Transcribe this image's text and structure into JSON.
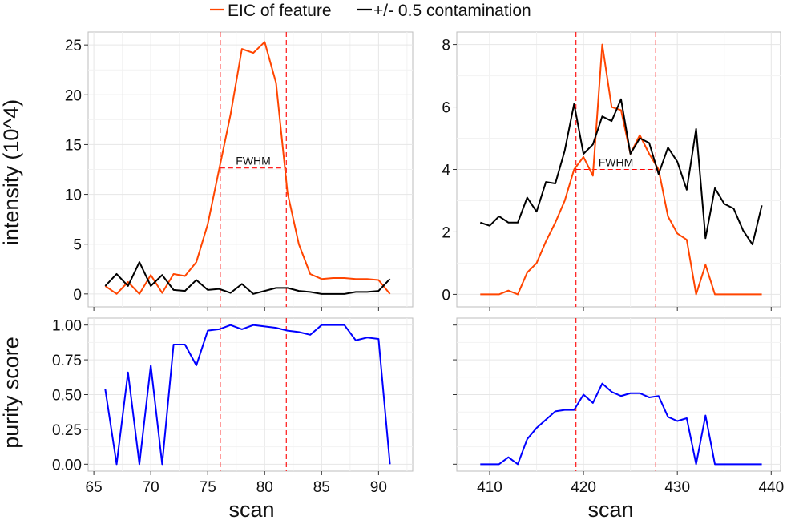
{
  "legend": {
    "entries": [
      {
        "label": "EIC of feature",
        "color": "#ff4500"
      },
      {
        "label": "+/- 0.5 contamination",
        "color": "#000000"
      }
    ]
  },
  "labels": {
    "ylabel_top": "intensity (10^4)",
    "ylabel_bottom": "purity score",
    "xlabel_left": "scan",
    "xlabel_right": "scan",
    "fwhm": "FWHM"
  },
  "colors": {
    "eic": "#ff4500",
    "contamination": "#000000",
    "purity": "#0000ff",
    "boundary": "#ff0000"
  },
  "chart_data": [
    {
      "panel": "top-left",
      "type": "line",
      "xlim": [
        64.5,
        93
      ],
      "ylim": [
        -1.3,
        26.3
      ],
      "xticks": [
        65,
        70,
        75,
        80,
        85,
        90
      ],
      "yticks": [
        0,
        5,
        10,
        15,
        20,
        25
      ],
      "ytick_labels": [
        "0",
        "5",
        "10",
        "15",
        "20",
        "25"
      ],
      "x": [
        66,
        67,
        68,
        69,
        70,
        71,
        72,
        73,
        74,
        75,
        76,
        77,
        78,
        79,
        80,
        81,
        82,
        83,
        84,
        85,
        86,
        87,
        88,
        89,
        90,
        91
      ],
      "series": [
        {
          "name": "EIC of feature",
          "color": "#ff4500",
          "values": [
            0.8,
            0,
            1.2,
            0,
            1.9,
            0.1,
            2,
            1.8,
            3.2,
            7,
            12.5,
            18,
            24.6,
            24.2,
            25.3,
            21.2,
            10.2,
            5,
            2,
            1.5,
            1.6,
            1.6,
            1.5,
            1.5,
            1.4,
            0
          ]
        },
        {
          "name": "+/- 0.5 contamination",
          "color": "#000000",
          "values": [
            0.8,
            2,
            0.8,
            3.2,
            0.8,
            1.9,
            0.4,
            0.3,
            1.4,
            0.4,
            0.5,
            0.1,
            1,
            0,
            0.3,
            0.6,
            0.6,
            0.3,
            0.2,
            0,
            0,
            0,
            0.2,
            0.2,
            0.3,
            1.5
          ]
        }
      ],
      "vlines": [
        76.1,
        81.9
      ],
      "fwhm": {
        "x0": 76.1,
        "x1": 81.9,
        "y": 12.65,
        "label": "FWHM"
      }
    },
    {
      "panel": "top-right",
      "type": "line",
      "xlim": [
        406.5,
        441
      ],
      "ylim": [
        -0.4,
        8.4
      ],
      "yticks": [
        0,
        2,
        4,
        6,
        8
      ],
      "ytick_labels": [
        "0",
        "2",
        "4",
        "6",
        "8"
      ],
      "x": [
        409,
        410,
        411,
        412,
        413,
        414,
        415,
        416,
        417,
        418,
        419,
        420,
        421,
        422,
        423,
        424,
        425,
        426,
        427,
        428,
        429,
        430,
        431,
        432,
        433,
        434,
        435,
        436,
        437,
        438,
        439
      ],
      "series": [
        {
          "name": "EIC of feature",
          "color": "#ff4500",
          "values": [
            0,
            0,
            0,
            0.12,
            0,
            0.7,
            1,
            1.7,
            2.3,
            3,
            4,
            4.4,
            3.8,
            8,
            6,
            5.9,
            4.5,
            5.1,
            4.5,
            4,
            2.5,
            1.95,
            1.75,
            0,
            0.95,
            0,
            0,
            0,
            0,
            0,
            0
          ]
        },
        {
          "name": "+/- 0.5 contamination",
          "color": "#000000",
          "values": [
            2.3,
            2.2,
            2.5,
            2.3,
            2.3,
            3.1,
            2.65,
            3.6,
            3.55,
            4.6,
            6.1,
            4.5,
            4.8,
            5.7,
            5.55,
            6.25,
            4.5,
            5,
            4.85,
            3.85,
            4.7,
            4.25,
            3.35,
            5.3,
            1.8,
            3.4,
            2.9,
            2.75,
            2.05,
            1.6,
            2.85
          ]
        }
      ],
      "vlines": [
        419.2,
        427.7
      ],
      "fwhm": {
        "x0": 419.2,
        "x1": 427.7,
        "y": 4,
        "label": "FWHM"
      }
    },
    {
      "panel": "bottom-left",
      "type": "line",
      "xlim": [
        64.5,
        93
      ],
      "ylim": [
        -0.05,
        1.05
      ],
      "xticks": [
        65,
        70,
        75,
        80,
        85,
        90
      ],
      "xtick_labels": [
        "65",
        "70",
        "75",
        "80",
        "85",
        "90"
      ],
      "yticks": [
        0,
        0.25,
        0.5,
        0.75,
        1
      ],
      "ytick_labels": [
        "0.00",
        "0.25",
        "0.50",
        "0.75",
        "1.00"
      ],
      "x": [
        66,
        67,
        68,
        69,
        70,
        71,
        72,
        73,
        74,
        75,
        76,
        77,
        78,
        79,
        80,
        81,
        82,
        83,
        84,
        85,
        86,
        87,
        88,
        89,
        90,
        91
      ],
      "series": [
        {
          "name": "purity score",
          "color": "#0000ff",
          "values": [
            0.54,
            0,
            0.66,
            0,
            0.71,
            0,
            0.86,
            0.86,
            0.71,
            0.96,
            0.97,
            1,
            0.97,
            1,
            0.99,
            0.98,
            0.96,
            0.95,
            0.93,
            1,
            1,
            1,
            0.89,
            0.91,
            0.9,
            0
          ]
        }
      ],
      "vlines": [
        76.1,
        81.9
      ]
    },
    {
      "panel": "bottom-right",
      "type": "line",
      "xlim": [
        406.5,
        441
      ],
      "ylim": [
        -0.05,
        1.05
      ],
      "xticks": [
        410,
        420,
        430,
        440
      ],
      "xtick_labels": [
        "410",
        "420",
        "430",
        "440"
      ],
      "yticks": [
        0,
        0.25,
        0.5,
        0.75,
        1
      ],
      "x": [
        409,
        410,
        411,
        412,
        413,
        414,
        415,
        416,
        417,
        418,
        419,
        420,
        421,
        422,
        423,
        424,
        425,
        426,
        427,
        428,
        429,
        430,
        431,
        432,
        433,
        434,
        435,
        436,
        437,
        438,
        439
      ],
      "series": [
        {
          "name": "purity score",
          "color": "#0000ff",
          "values": [
            0,
            0,
            0,
            0.05,
            0,
            0.18,
            0.26,
            0.32,
            0.38,
            0.39,
            0.39,
            0.5,
            0.44,
            0.58,
            0.52,
            0.49,
            0.51,
            0.51,
            0.48,
            0.49,
            0.34,
            0.31,
            0.33,
            0,
            0.35,
            0,
            0,
            0,
            0,
            0,
            0
          ]
        }
      ],
      "vlines": [
        419.2,
        427.7
      ]
    }
  ]
}
